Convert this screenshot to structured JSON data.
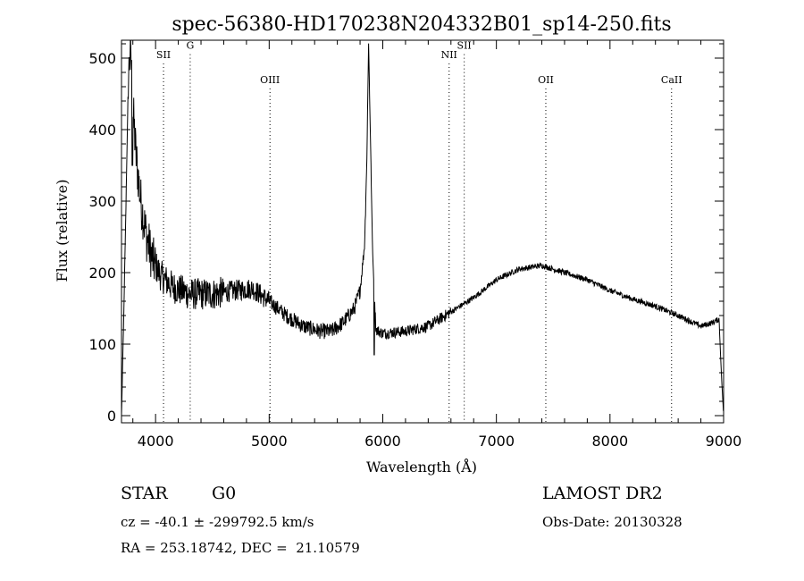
{
  "chart_data": {
    "type": "line",
    "title": "spec-56380-HD170238N204332B01_sp14-250.fits",
    "xlabel": "Wavelength (Å)",
    "ylabel": "Flux (relative)",
    "xlim": [
      3700,
      9000
    ],
    "ylim": [
      -10,
      525
    ],
    "x_ticks": [
      4000,
      5000,
      6000,
      7000,
      8000,
      9000
    ],
    "y_ticks": [
      0,
      100,
      200,
      300,
      400,
      500
    ],
    "grid": false,
    "line_color": "#000000",
    "lines": [
      {
        "label": "SII",
        "x": 4070,
        "label_y": 500
      },
      {
        "label": "G",
        "x": 4305,
        "label_y": 513
      },
      {
        "label": "OIII",
        "x": 5007,
        "label_y": 465
      },
      {
        "label": "NII",
        "x": 6584,
        "label_y": 500
      },
      {
        "label": "SII",
        "x": 6717,
        "label_y": 513
      },
      {
        "label": "OII",
        "x": 7435,
        "label_y": 465
      },
      {
        "label": "CaII",
        "x": 8542,
        "label_y": 465
      }
    ],
    "spectrum_anchors": [
      [
        3700,
        0
      ],
      [
        3720,
        140
      ],
      [
        3740,
        300
      ],
      [
        3760,
        470
      ],
      [
        3780,
        520
      ],
      [
        3800,
        430
      ],
      [
        3830,
        360
      ],
      [
        3870,
        300
      ],
      [
        3920,
        250
      ],
      [
        3980,
        215
      ],
      [
        4050,
        195
      ],
      [
        4150,
        180
      ],
      [
        4300,
        170
      ],
      [
        4500,
        170
      ],
      [
        4700,
        175
      ],
      [
        4850,
        178
      ],
      [
        5000,
        160
      ],
      [
        5150,
        140
      ],
      [
        5300,
        125
      ],
      [
        5450,
        118
      ],
      [
        5550,
        118
      ],
      [
        5650,
        130
      ],
      [
        5750,
        150
      ],
      [
        5800,
        175
      ],
      [
        5840,
        240
      ],
      [
        5860,
        360
      ],
      [
        5875,
        520
      ],
      [
        5890,
        400
      ],
      [
        5910,
        230
      ],
      [
        5940,
        120
      ],
      [
        6000,
        115
      ],
      [
        6200,
        118
      ],
      [
        6400,
        125
      ],
      [
        6600,
        145
      ],
      [
        6800,
        165
      ],
      [
        7000,
        190
      ],
      [
        7200,
        205
      ],
      [
        7400,
        210
      ],
      [
        7600,
        200
      ],
      [
        7800,
        190
      ],
      [
        8000,
        175
      ],
      [
        8200,
        163
      ],
      [
        8400,
        153
      ],
      [
        8600,
        140
      ],
      [
        8800,
        125
      ],
      [
        8900,
        130
      ],
      [
        8960,
        135
      ],
      [
        8980,
        60
      ],
      [
        9000,
        0
      ]
    ]
  },
  "info": {
    "class": "STAR",
    "subclass": "G0",
    "survey": "LAMOST DR2",
    "redshift": "cz = -40.1 ± -299792.5 km/s",
    "obs_date": "Obs-Date: 20130328",
    "coords": "RA = 253.18742, DEC =  21.10579"
  }
}
